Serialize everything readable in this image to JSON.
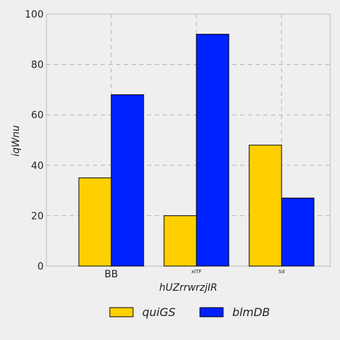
{
  "chart_data": {
    "type": "bar",
    "categories": [
      "BB",
      "xITF",
      "Sd"
    ],
    "series": [
      {
        "name": "quiGS",
        "color": "#ffd000",
        "values": [
          35,
          20,
          48
        ]
      },
      {
        "name": "blmDB",
        "color": "#0022ff",
        "values": [
          68,
          92,
          27
        ]
      }
    ],
    "xlabel": "hUZrrwrzjIR",
    "ylabel": "iqWnu",
    "ylim": [
      0,
      100
    ],
    "yticks": [
      0,
      20,
      40,
      60,
      80,
      100
    ],
    "grid": true,
    "legend_position": "bottom-center",
    "background_color": "#efefef"
  }
}
